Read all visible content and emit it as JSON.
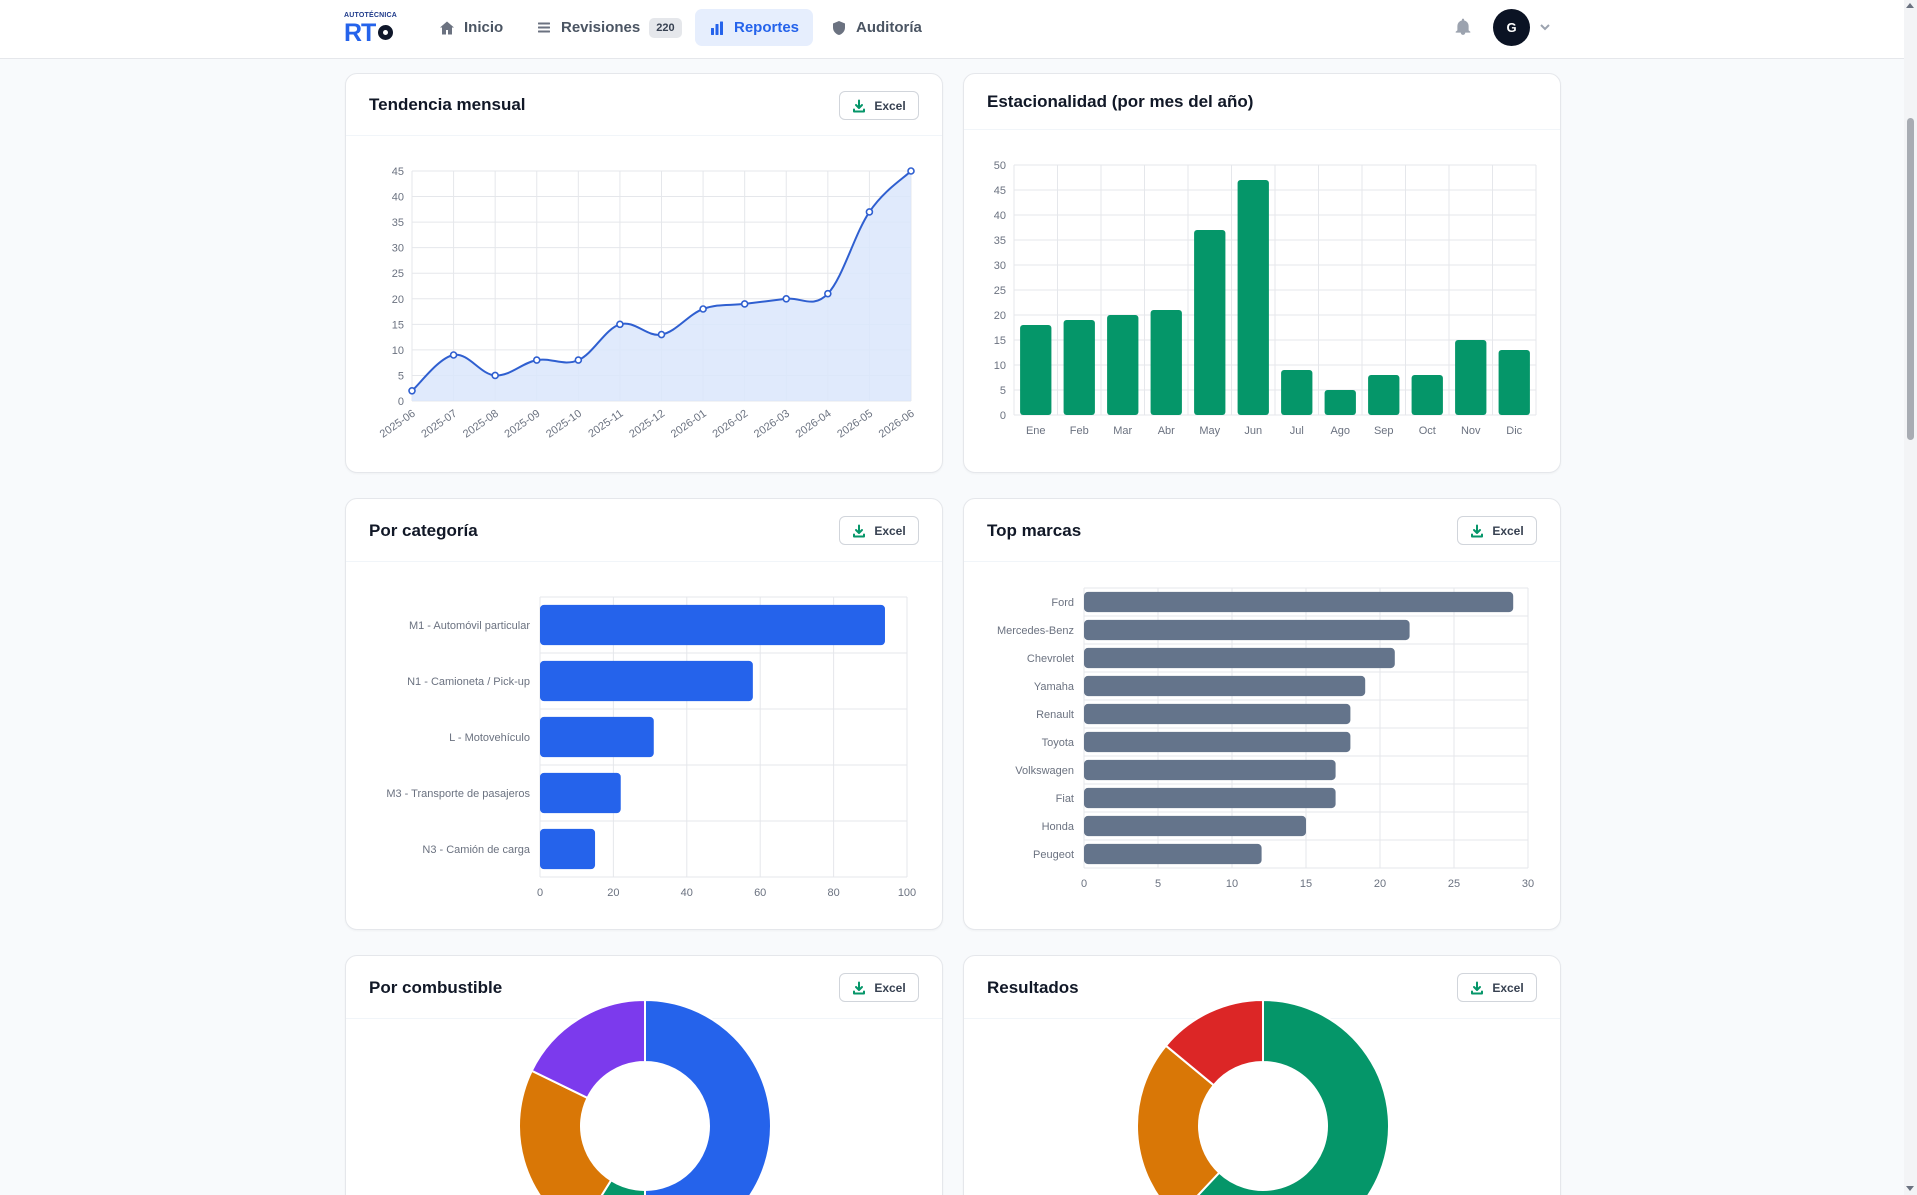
{
  "app": {
    "logo_small": "AUTOTÉCNICA",
    "logo_big": "RT",
    "nav": [
      {
        "label": "Inicio",
        "icon": "home-icon"
      },
      {
        "label": "Revisiones",
        "icon": "list-icon",
        "badge": "220"
      },
      {
        "label": "Reportes",
        "icon": "bar-chart-icon",
        "active": true
      },
      {
        "label": "Auditoría",
        "icon": "shield-icon"
      }
    ],
    "user_initial": "G",
    "accent_color": "#2563eb"
  },
  "export_label": "Excel",
  "cards": {
    "trend": {
      "title": "Tendencia mensual"
    },
    "seasonality": {
      "title": "Estacionalidad (por mes del año)"
    },
    "category": {
      "title": "Por categoría"
    },
    "brands": {
      "title": "Top marcas"
    },
    "fuel": {
      "title": "Por combustible"
    },
    "results": {
      "title": "Resultados"
    }
  },
  "chart_data": [
    {
      "id": "trend",
      "type": "area",
      "title": "Tendencia mensual",
      "x": [
        "2025-06",
        "2025-07",
        "2025-08",
        "2025-09",
        "2025-10",
        "2025-11",
        "2025-12",
        "2026-01",
        "2026-02",
        "2026-03",
        "2026-04",
        "2026-05",
        "2026-06"
      ],
      "values": [
        2,
        9,
        5,
        8,
        8,
        15,
        13,
        18,
        19,
        20,
        21,
        37,
        45
      ],
      "ylim": [
        0,
        45
      ],
      "yticks": [
        0,
        5,
        10,
        15,
        20,
        25,
        30,
        35,
        40,
        45
      ],
      "grid": true,
      "color": "#2f5fd0",
      "fill": "#dbe6fb"
    },
    {
      "id": "seasonality",
      "type": "bar",
      "title": "Estacionalidad (por mes del año)",
      "categories": [
        "Ene",
        "Feb",
        "Mar",
        "Abr",
        "May",
        "Jun",
        "Jul",
        "Ago",
        "Sep",
        "Oct",
        "Nov",
        "Dic"
      ],
      "values": [
        18,
        19,
        20,
        21,
        37,
        47,
        9,
        5,
        8,
        8,
        15,
        13
      ],
      "ylim": [
        0,
        50
      ],
      "yticks": [
        0,
        5,
        10,
        15,
        20,
        25,
        30,
        35,
        40,
        45,
        50
      ],
      "grid": true,
      "color": "#059669"
    },
    {
      "id": "category",
      "type": "bar",
      "orientation": "horizontal",
      "title": "Por categoría",
      "categories": [
        "M1 - Automóvil particular",
        "N1 - Camioneta / Pick-up",
        "L - Motovehículo",
        "M3 - Transporte de pasajeros",
        "N3 - Camión de carga"
      ],
      "values": [
        94,
        58,
        31,
        22,
        15
      ],
      "xlim": [
        0,
        100
      ],
      "xticks": [
        0,
        20,
        40,
        60,
        80,
        100
      ],
      "grid": true,
      "color": "#2563eb"
    },
    {
      "id": "brands",
      "type": "bar",
      "orientation": "horizontal",
      "title": "Top marcas",
      "categories": [
        "Ford",
        "Mercedes-Benz",
        "Chevrolet",
        "Yamaha",
        "Renault",
        "Toyota",
        "Volkswagen",
        "Fiat",
        "Honda",
        "Peugeot"
      ],
      "values": [
        29,
        22,
        21,
        19,
        18,
        18,
        17,
        17,
        15,
        12
      ],
      "xlim": [
        0,
        30
      ],
      "xticks": [
        0,
        5,
        10,
        15,
        20,
        25,
        30
      ],
      "grid": true,
      "color": "#64748b"
    },
    {
      "id": "fuel",
      "type": "pie",
      "donut": true,
      "title": "Por combustible",
      "values": [
        45,
        8,
        21,
        16
      ],
      "colors": [
        "#2563eb",
        "#059669",
        "#d97706",
        "#7c3aed"
      ]
    },
    {
      "id": "results",
      "type": "pie",
      "donut": true,
      "title": "Resultados",
      "values": [
        62,
        24,
        14
      ],
      "colors": [
        "#059669",
        "#d97706",
        "#dc2626"
      ]
    }
  ]
}
